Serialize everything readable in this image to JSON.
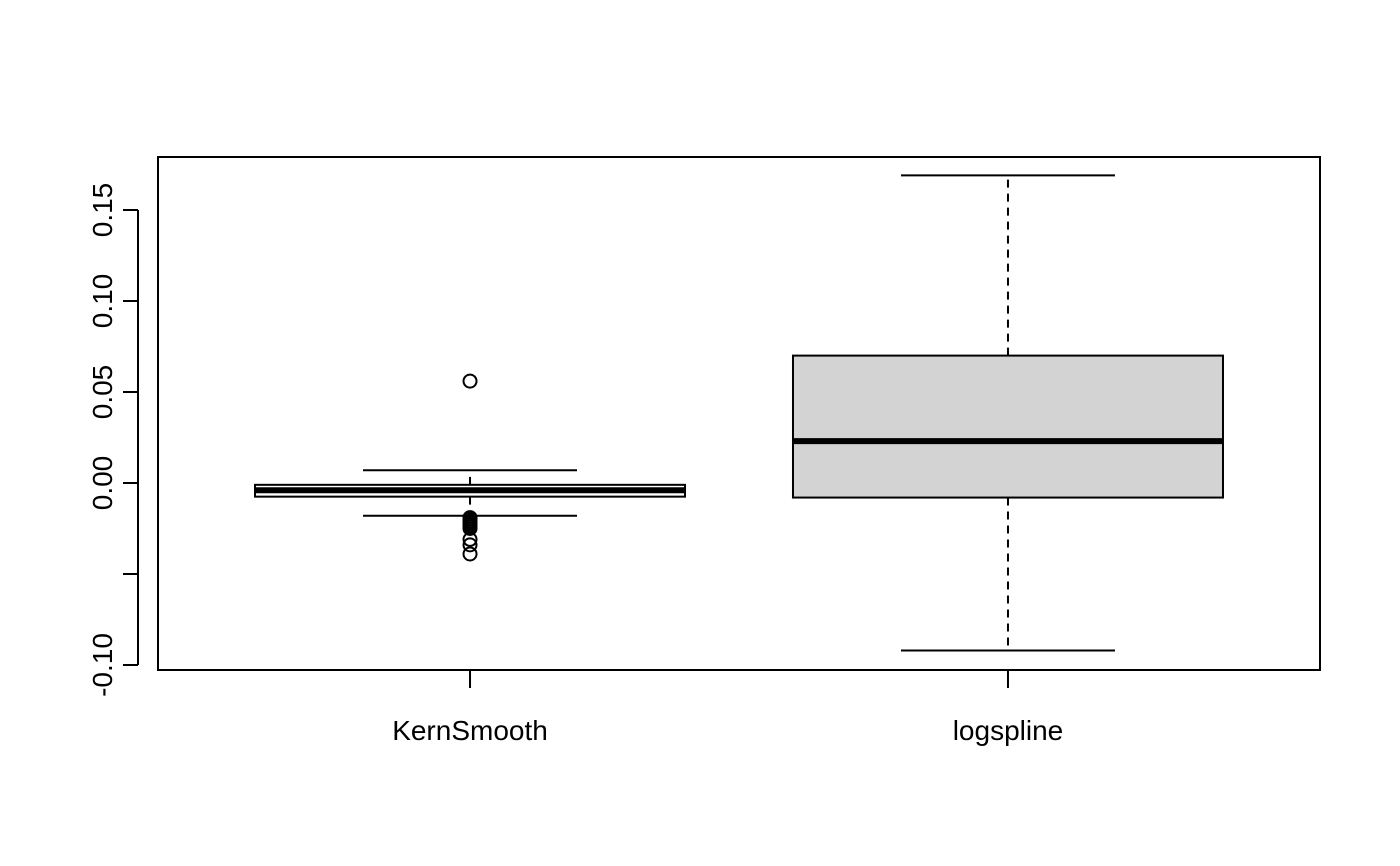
{
  "chart_data": {
    "type": "boxplot",
    "title": "",
    "xlabel": "",
    "ylabel": "",
    "ylim": [
      -0.1,
      0.17
    ],
    "y_ticks": [
      -0.1,
      -0.05,
      0.0,
      0.05,
      0.1,
      0.15
    ],
    "y_tick_labels": [
      "-0.10",
      "",
      "0.00",
      "0.05",
      "0.10",
      "0.15"
    ],
    "categories": [
      "KernSmooth",
      "logspline"
    ],
    "boxes": [
      {
        "category": "KernSmooth",
        "whisker_low": -0.018,
        "q1": -0.0075,
        "median": -0.004,
        "q3": -0.001,
        "whisker_high": 0.007,
        "outliers": [
          0.056,
          -0.019,
          -0.02,
          -0.021,
          -0.022,
          -0.023,
          -0.024,
          -0.025,
          -0.031,
          -0.034,
          -0.039
        ],
        "fill": "#ffffff"
      },
      {
        "category": "logspline",
        "whisker_low": -0.092,
        "q1": -0.008,
        "median": 0.023,
        "q3": 0.07,
        "whisker_high": 0.169,
        "outliers": [],
        "fill": "#d3d3d3"
      }
    ],
    "grid": false,
    "legend": "none"
  }
}
